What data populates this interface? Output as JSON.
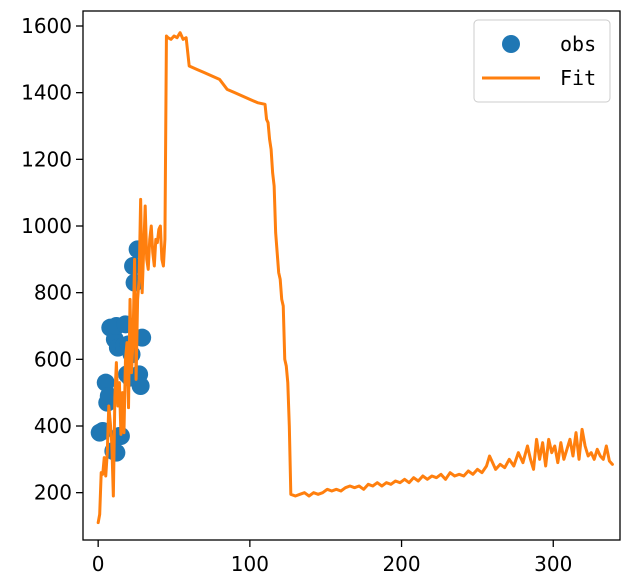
{
  "chart_data": {
    "type": "line",
    "xlim": [
      -10,
      344
    ],
    "ylim": [
      58,
      1645
    ],
    "x_ticks": [
      0,
      100,
      200,
      300
    ],
    "y_ticks": [
      200,
      400,
      600,
      800,
      1000,
      1200,
      1400,
      1600
    ],
    "grid": false,
    "legend_position": "top-right",
    "series": [
      {
        "name": "obs",
        "kind": "scatter",
        "color": "#1f77b4",
        "points": [
          [
            1,
            380
          ],
          [
            3,
            385
          ],
          [
            5,
            530
          ],
          [
            6,
            470
          ],
          [
            7,
            490
          ],
          [
            8,
            695
          ],
          [
            10,
            325
          ],
          [
            11,
            660
          ],
          [
            12,
            700
          ],
          [
            12,
            320
          ],
          [
            13,
            635
          ],
          [
            14,
            370
          ],
          [
            15,
            370
          ],
          [
            17,
            640
          ],
          [
            18,
            705
          ],
          [
            19,
            555
          ],
          [
            20,
            645
          ],
          [
            21,
            545
          ],
          [
            22,
            615
          ],
          [
            23,
            880
          ],
          [
            24,
            830
          ],
          [
            26,
            930
          ],
          [
            27,
            555
          ],
          [
            28,
            520
          ],
          [
            29,
            665
          ]
        ]
      },
      {
        "name": "Fit",
        "kind": "line",
        "color": "#ff7f0e",
        "points": [
          [
            0,
            110
          ],
          [
            1,
            135
          ],
          [
            2,
            260
          ],
          [
            3,
            255
          ],
          [
            4,
            305
          ],
          [
            5,
            250
          ],
          [
            6,
            320
          ],
          [
            7,
            460
          ],
          [
            8,
            410
          ],
          [
            9,
            345
          ],
          [
            10,
            190
          ],
          [
            11,
            485
          ],
          [
            12,
            590
          ],
          [
            13,
            460
          ],
          [
            14,
            530
          ],
          [
            15,
            375
          ],
          [
            16,
            500
          ],
          [
            17,
            380
          ],
          [
            18,
            600
          ],
          [
            19,
            650
          ],
          [
            20,
            455
          ],
          [
            21,
            780
          ],
          [
            22,
            560
          ],
          [
            23,
            660
          ],
          [
            24,
            900
          ],
          [
            25,
            540
          ],
          [
            26,
            780
          ],
          [
            27,
            840
          ],
          [
            28,
            1080
          ],
          [
            29,
            800
          ],
          [
            30,
            930
          ],
          [
            31,
            1060
          ],
          [
            32,
            900
          ],
          [
            33,
            870
          ],
          [
            34,
            960
          ],
          [
            35,
            1000
          ],
          [
            36,
            920
          ],
          [
            37,
            880
          ],
          [
            38,
            960
          ],
          [
            39,
            950
          ],
          [
            40,
            990
          ],
          [
            41,
            1000
          ],
          [
            42,
            900
          ],
          [
            43,
            880
          ],
          [
            44,
            960
          ],
          [
            45,
            1570
          ],
          [
            46,
            1565
          ],
          [
            48,
            1560
          ],
          [
            50,
            1570
          ],
          [
            52,
            1565
          ],
          [
            54,
            1580
          ],
          [
            56,
            1560
          ],
          [
            58,
            1565
          ],
          [
            60,
            1480
          ],
          [
            65,
            1470
          ],
          [
            70,
            1460
          ],
          [
            75,
            1450
          ],
          [
            80,
            1440
          ],
          [
            85,
            1410
          ],
          [
            90,
            1400
          ],
          [
            95,
            1390
          ],
          [
            100,
            1380
          ],
          [
            105,
            1370
          ],
          [
            110,
            1365
          ],
          [
            111,
            1320
          ],
          [
            112,
            1310
          ],
          [
            113,
            1260
          ],
          [
            114,
            1230
          ],
          [
            115,
            1160
          ],
          [
            116,
            1120
          ],
          [
            117,
            980
          ],
          [
            118,
            920
          ],
          [
            119,
            860
          ],
          [
            120,
            840
          ],
          [
            121,
            780
          ],
          [
            122,
            760
          ],
          [
            123,
            600
          ],
          [
            124,
            580
          ],
          [
            125,
            530
          ],
          [
            126,
            400
          ],
          [
            127,
            195
          ],
          [
            130,
            190
          ],
          [
            133,
            195
          ],
          [
            136,
            200
          ],
          [
            139,
            190
          ],
          [
            142,
            200
          ],
          [
            145,
            195
          ],
          [
            148,
            200
          ],
          [
            151,
            210
          ],
          [
            154,
            205
          ],
          [
            157,
            210
          ],
          [
            160,
            205
          ],
          [
            163,
            215
          ],
          [
            166,
            220
          ],
          [
            169,
            215
          ],
          [
            172,
            220
          ],
          [
            175,
            210
          ],
          [
            178,
            225
          ],
          [
            181,
            220
          ],
          [
            184,
            230
          ],
          [
            187,
            220
          ],
          [
            190,
            230
          ],
          [
            193,
            225
          ],
          [
            196,
            235
          ],
          [
            199,
            230
          ],
          [
            202,
            240
          ],
          [
            205,
            230
          ],
          [
            208,
            245
          ],
          [
            211,
            235
          ],
          [
            214,
            250
          ],
          [
            217,
            240
          ],
          [
            220,
            250
          ],
          [
            223,
            245
          ],
          [
            226,
            255
          ],
          [
            229,
            240
          ],
          [
            232,
            260
          ],
          [
            235,
            250
          ],
          [
            238,
            255
          ],
          [
            241,
            250
          ],
          [
            244,
            265
          ],
          [
            247,
            255
          ],
          [
            250,
            270
          ],
          [
            253,
            260
          ],
          [
            256,
            280
          ],
          [
            258,
            310
          ],
          [
            260,
            290
          ],
          [
            262,
            270
          ],
          [
            265,
            285
          ],
          [
            268,
            275
          ],
          [
            271,
            300
          ],
          [
            274,
            280
          ],
          [
            277,
            320
          ],
          [
            280,
            290
          ],
          [
            283,
            340
          ],
          [
            285,
            300
          ],
          [
            287,
            270
          ],
          [
            289,
            360
          ],
          [
            291,
            300
          ],
          [
            293,
            350
          ],
          [
            295,
            280
          ],
          [
            297,
            360
          ],
          [
            299,
            320
          ],
          [
            301,
            340
          ],
          [
            303,
            290
          ],
          [
            305,
            350
          ],
          [
            307,
            300
          ],
          [
            309,
            330
          ],
          [
            311,
            360
          ],
          [
            313,
            310
          ],
          [
            315,
            380
          ],
          [
            317,
            300
          ],
          [
            319,
            390
          ],
          [
            321,
            340
          ],
          [
            323,
            310
          ],
          [
            325,
            320
          ],
          [
            327,
            300
          ],
          [
            329,
            330
          ],
          [
            331,
            310
          ],
          [
            333,
            300
          ],
          [
            335,
            340
          ],
          [
            337,
            295
          ],
          [
            339,
            285
          ]
        ]
      }
    ]
  }
}
